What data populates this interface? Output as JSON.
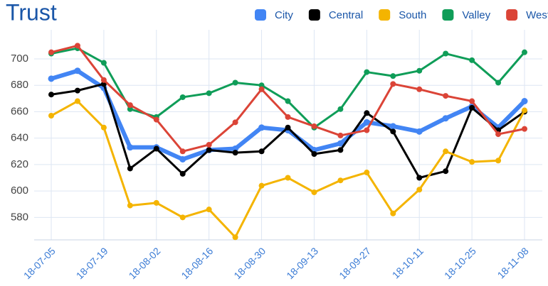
{
  "chart_data": {
    "type": "line",
    "title": "Trust",
    "categories": [
      "18-07-05",
      null,
      "18-07-19",
      null,
      "18-08-02",
      null,
      "18-08-16",
      null,
      "18-08-30",
      null,
      "18-09-13",
      null,
      "18-09-27",
      null,
      "18-10-11",
      null,
      "18-10-25",
      null,
      "18-11-08"
    ],
    "series": [
      {
        "name": "City",
        "color": "#4285f4",
        "values": [
          685,
          691,
          678,
          633,
          633,
          624,
          631,
          632,
          648,
          646,
          631,
          636,
          652,
          649,
          645,
          655,
          664,
          648,
          668
        ]
      },
      {
        "name": "Central",
        "color": "#000000",
        "values": [
          673,
          676,
          681,
          617,
          632,
          613,
          631,
          629,
          630,
          648,
          628,
          631,
          659,
          645,
          610,
          615,
          663,
          646,
          660
        ]
      },
      {
        "name": "South",
        "color": "#f4b400",
        "values": [
          657,
          668,
          648,
          589,
          591,
          580,
          586,
          565,
          604,
          610,
          599,
          608,
          614,
          583,
          601,
          630,
          622,
          623,
          661
        ]
      },
      {
        "name": "Valley",
        "color": "#0f9d58",
        "values": [
          704,
          708,
          697,
          662,
          656,
          671,
          674,
          682,
          680,
          668,
          648,
          662,
          690,
          687,
          691,
          704,
          699,
          682,
          705
        ]
      },
      {
        "name": "West",
        "color": "#db4437",
        "values": [
          705,
          710,
          684,
          665,
          654,
          630,
          635,
          652,
          677,
          656,
          649,
          642,
          646,
          681,
          677,
          672,
          668,
          643,
          647
        ]
      }
    ],
    "ylim": [
      563,
      722
    ],
    "yticks": [
      580,
      600,
      620,
      640,
      660,
      680,
      700
    ],
    "grid": true,
    "legend": "top"
  }
}
